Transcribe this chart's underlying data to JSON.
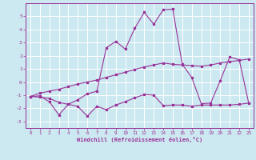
{
  "xlabel": "Windchill (Refroidissement éolien,°C)",
  "bg_color": "#cce8f0",
  "grid_color": "#ffffff",
  "line_color": "#993399",
  "xlim": [
    -0.5,
    23.5
  ],
  "ylim": [
    -3.5,
    6.0
  ],
  "xticks": [
    0,
    1,
    2,
    3,
    4,
    5,
    6,
    7,
    8,
    9,
    10,
    11,
    12,
    13,
    14,
    15,
    16,
    17,
    18,
    19,
    20,
    21,
    22,
    23
  ],
  "yticks": [
    -3,
    -2,
    -1,
    0,
    1,
    2,
    3,
    4,
    5
  ],
  "series1_x": [
    0,
    1,
    2,
    3,
    4,
    5,
    6,
    7,
    8,
    9,
    10,
    11,
    12,
    13,
    14,
    15,
    16,
    17,
    18,
    19,
    20,
    21,
    22,
    23
  ],
  "series1_y": [
    -1.1,
    -0.85,
    -0.7,
    -0.55,
    -0.35,
    -0.15,
    0.0,
    0.15,
    0.35,
    0.55,
    0.75,
    0.95,
    1.15,
    1.3,
    1.45,
    1.35,
    1.3,
    1.25,
    1.2,
    1.3,
    1.45,
    1.55,
    1.65,
    1.75
  ],
  "series2_x": [
    0,
    1,
    2,
    3,
    4,
    5,
    6,
    7,
    8,
    9,
    10,
    11,
    12,
    13,
    14,
    15,
    16,
    17,
    18,
    19,
    20,
    21,
    22,
    23
  ],
  "series2_y": [
    -1.1,
    -1.15,
    -1.25,
    -1.55,
    -1.7,
    -1.85,
    -2.6,
    -1.85,
    -2.1,
    -1.75,
    -1.5,
    -1.2,
    -0.95,
    -1.0,
    -1.8,
    -1.75,
    -1.75,
    -1.85,
    -1.75,
    -1.75,
    -1.75,
    -1.75,
    -1.7,
    -1.6
  ],
  "series3_x": [
    0,
    1,
    2,
    3,
    4,
    5,
    6,
    7,
    8,
    9,
    10,
    11,
    12,
    13,
    14,
    15,
    16,
    17,
    18,
    19,
    20,
    21,
    22,
    23
  ],
  "series3_y": [
    -1.1,
    -1.05,
    -1.5,
    -2.5,
    -1.7,
    -1.35,
    -0.9,
    -0.7,
    2.6,
    3.1,
    2.5,
    4.1,
    5.3,
    4.4,
    5.5,
    5.55,
    1.35,
    0.35,
    -1.65,
    -1.6,
    0.1,
    1.9,
    1.7,
    -1.6
  ]
}
